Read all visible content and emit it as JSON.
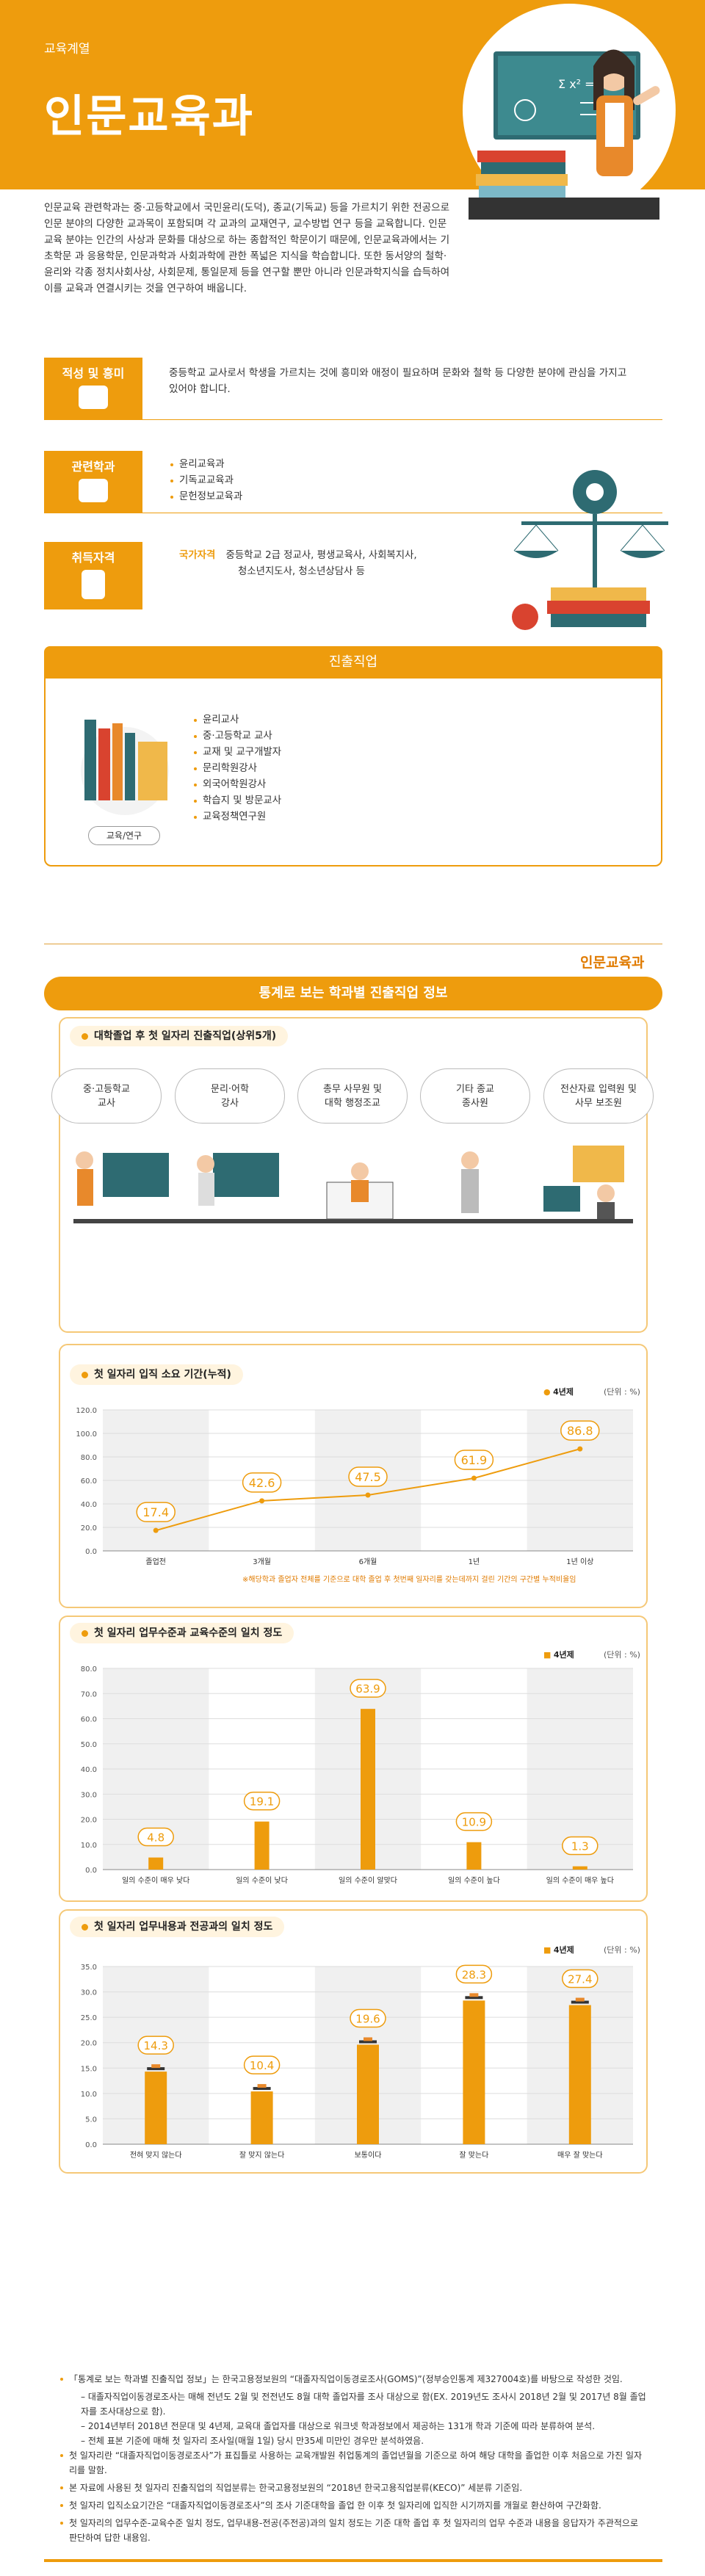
{
  "header": {
    "category": "교육계열",
    "title": "인문교육과"
  },
  "intro": "인문교육 관련학과는 중·고등학교에서 국민윤리(도덕), 종교(기독교) 등을 가르치기 위한 전공으로 인문 분야의 다양한 교과목이 포함되며 각 교과의 교재연구, 교수방법 연구 등을 교육합니다. 인문교육 분야는 인간의 사상과 문화를 대상으로 하는 종합적인 학문이기 때문에, 인문교육과에서는 기초학문 과 응용학문, 인문과학과 사회과학에 관한 폭넓은 지식을 학습합니다. 또한 동서양의 철학·윤리와 각종 정치사회사상, 사회문제, 통일문제 등을 연구할 뿐만 아니라 인문과학지식을 습득하여 이를 교육과 연결시키는 것을 연구하여 배웁니다.",
  "aptitude": {
    "label": "적성 및 흥미",
    "text": "중등학교 교사로서 학생을 가르치는 것에 흥미와 애정이 필요하며 문화와 철학 등 다양한 분야에 관심을 가지고 있어야 합니다."
  },
  "related": {
    "label": "관련학과",
    "items": [
      "윤리교육과",
      "기독교교육과",
      "문헌정보교육과"
    ]
  },
  "license": {
    "label": "취득자격",
    "kind": "국가자격",
    "line1": "중등학교 2급 정교사, 평생교육사, 사회복지사,",
    "line2": "청소년지도사, 청소년상담사 등"
  },
  "career": {
    "title": "진출직업",
    "tag": "교육/연구",
    "items": [
      "윤리교사",
      "중·고등학교 교사",
      "교재 및 교구개발자",
      "문리학원강사",
      "외국어학원강사",
      "학습지 및 방문교사",
      "교육정책연구원"
    ]
  },
  "stats": {
    "dept": "인문교육과",
    "title": "통계로 보는 학과별 진출직업 정보",
    "jobs_title": "대학졸업 후 첫 일자리 진출직업(상위5개)",
    "jobs": [
      "중·고등학교\n교사",
      "문리·어학\n강사",
      "총무 사무원 및\n대학 행정조교",
      "기타 종교\n종사원",
      "전산자료 입력원 및\n사무 보조원"
    ]
  },
  "chart_data": [
    {
      "type": "line",
      "title": "첫 일자리 입직 소요 기간(누적)",
      "legend": "4년제",
      "unit": "(단위 : %)",
      "categories": [
        "졸업전",
        "3개월",
        "6개월",
        "1년",
        "1년 이상"
      ],
      "values": [
        17.4,
        42.6,
        47.5,
        61.9,
        86.8
      ],
      "ylim": [
        0,
        120
      ],
      "yticks": [
        "0.0",
        "20.0",
        "40.0",
        "60.0",
        "80.0",
        "100.0",
        "120.0"
      ],
      "note": "※해당학과 졸업자 전체를 기준으로 대학 졸업 후 첫번째 일자리를 갖는데까지 걸린 기간의 구간별 누적비율임",
      "accent": "#ee9c0d"
    },
    {
      "type": "bar",
      "title": "첫 일자리 업무수준과 교육수준의 일치 정도",
      "legend": "4년제",
      "unit": "(단위 : %)",
      "categories": [
        "일의 수준이 매우 낮다",
        "일의 수준이 낮다",
        "일의 수준이 알맞다",
        "일의 수준이 높다",
        "일의 수준이 매우 높다"
      ],
      "values": [
        4.8,
        19.1,
        63.9,
        10.9,
        1.3
      ],
      "ylim": [
        0,
        80
      ],
      "yticks": [
        "0.0",
        "10.0",
        "20.0",
        "30.0",
        "40.0",
        "50.0",
        "60.0",
        "70.0",
        "80.0"
      ],
      "accent": "#ee9c0d"
    },
    {
      "type": "bar",
      "title": "첫 일자리 업무내용과 전공과의 일치 정도",
      "legend": "4년제",
      "unit": "(단위 : %)",
      "categories": [
        "전혀 맞지 않는다",
        "잘 맞지 않는다",
        "보통이다",
        "잘 맞는다",
        "매우 잘 맞는다"
      ],
      "values": [
        14.3,
        10.4,
        19.6,
        28.3,
        27.4
      ],
      "ylim": [
        0,
        35
      ],
      "yticks": [
        "0.0",
        "5.0",
        "10.0",
        "15.0",
        "20.0",
        "25.0",
        "30.0",
        "35.0"
      ],
      "accent": "#ee9c0d"
    }
  ],
  "sources": {
    "s1": "「통계로 보는 학과별 진출직업 정보」는 한국고용정보원의 “대졸자직업이동경로조사(GOMS)”(정부승인통계 제327004호)를 바탕으로 작성한 것임.",
    "s1a": "– 대졸자직업이동경로조사는 매해 전년도 2월 및 전전년도 8월 대학 졸업자를 조사 대상으로 함(EX. 2019년도 조사시 2018년 2월 및 2017년 8월 졸업자를 조사대상으로 함).",
    "s1b": "– 2014년부터 2018년 전문대 및 4년제, 교육대 졸업자를 대상으로 워크넷 학과정보에서 제공하는 131개 학과 기준에 따라 분류하여 분석.",
    "s1c": "– 전체 표본 기준에 매해 첫 일자리 조사일(매월 1일) 당시 만35세 미만인 경우만 분석하였음.",
    "s2": "첫 일자리란 “대졸자직업이동경로조사”가 표집틀로 사용하는 교육개발원 취업통계의 졸업년월을 기준으로 하여 해당 대학을 졸업한 이후 처음으로 가진 일자리를 말함.",
    "s3": "본 자료에 사용된 첫 일자리 진출직업의 직업분류는 한국고용정보원의 “2018년 한국고용직업분류(KECO)” 세분류 기준임.",
    "s4": "첫 일자리 입직소요기간은 “대졸자직업이동경로조사”의 조사 기준대학을 졸업 한 이후 첫 일자리에 입직한 시기까지를 개월로 환산하여 구간화함.",
    "s5": "첫 일자리의 업무수준-교육수준 일치 정도, 업무내용-전공(주전공)과의 일치 정도는 기준 대학 졸업 후 첫 일자리의 업무 수준과 내용을 응답자가 주관적으로 판단하여 답한 내용임."
  }
}
